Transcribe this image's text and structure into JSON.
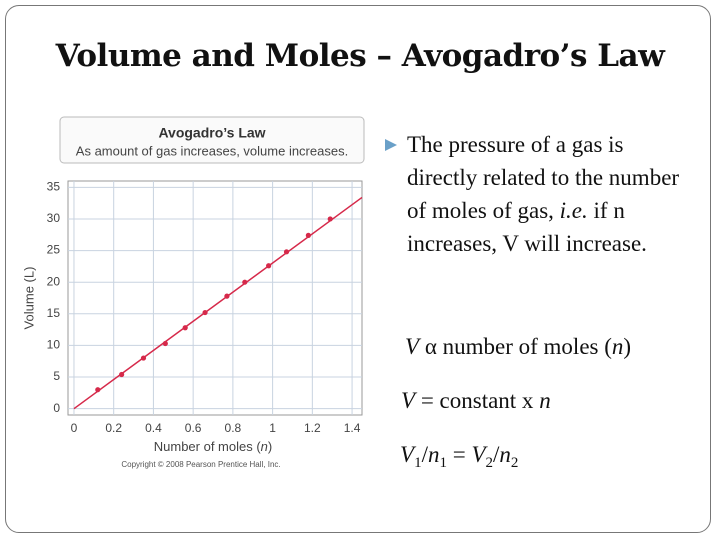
{
  "title": "Volume and Moles – Avogadro’s Law",
  "bullet": [
    "The pressure of a gas is directly related to the number of moles of gas, ",
    "i.e.",
    " if n increases, V will increase."
  ],
  "equations": [
    [
      "V",
      " α ",
      "number of moles (",
      "n",
      ")"
    ],
    [
      "V",
      " = constant x ",
      "n"
    ],
    [
      "V",
      "1",
      "/",
      "n",
      "1",
      " = ",
      "V",
      "2",
      "/",
      "n",
      "2"
    ]
  ],
  "chart_data": {
    "type": "scatter",
    "title": "Avogadro’s Law",
    "subtitle": "As amount of gas increases, volume increases.",
    "x_label": [
      "Number of moles (",
      "n",
      ")"
    ],
    "y_label": "Volume (L)",
    "copyright": "Copyright © 2008 Pearson Prentice Hall, Inc.",
    "x": [
      0.12,
      0.24,
      0.35,
      0.46,
      0.56,
      0.66,
      0.77,
      0.86,
      0.98,
      1.07,
      1.18,
      1.29
    ],
    "values": [
      3,
      5.4,
      8,
      10.3,
      12.8,
      15.2,
      17.8,
      20,
      22.6,
      24.8,
      27.4,
      30
    ],
    "color": "#d6294a",
    "line": {
      "x": [
        0,
        1.45
      ],
      "values": [
        0,
        33.4
      ]
    },
    "xlim": [
      -0.03,
      1.45
    ],
    "ylim": [
      -1,
      36
    ],
    "xticks": [
      0,
      0.2,
      0.4,
      0.6,
      0.8,
      1,
      1.2,
      1.4
    ],
    "yticks": [
      0,
      5,
      10,
      15,
      20,
      25,
      30,
      35
    ],
    "grid": true
  }
}
